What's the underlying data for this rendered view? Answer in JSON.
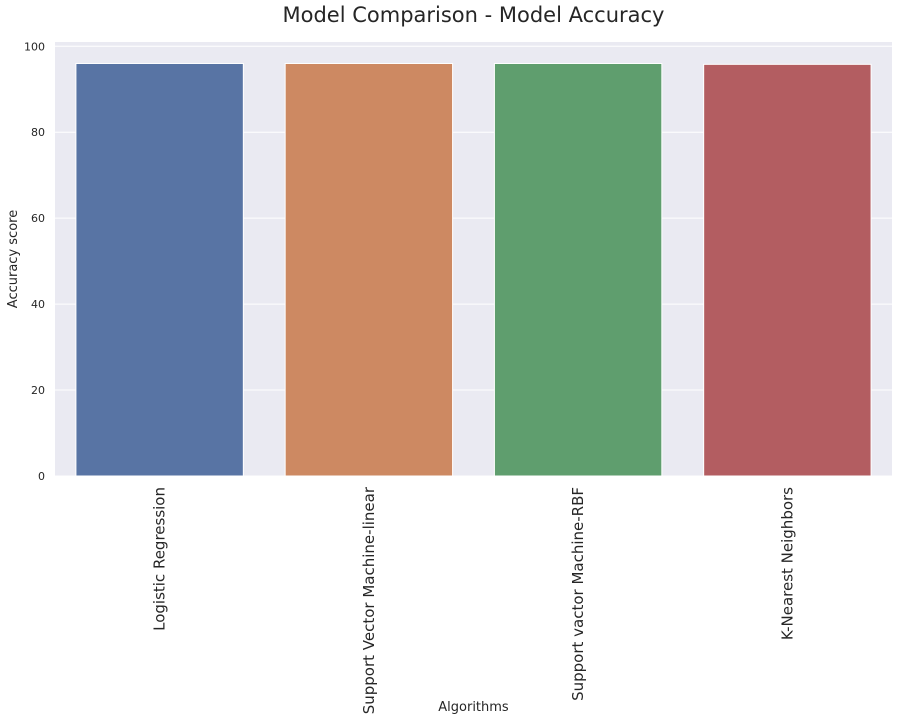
{
  "chart_data": {
    "type": "bar",
    "title": "Model Comparison - Model Accuracy",
    "xlabel": "Algorithms",
    "ylabel": "Accuracy score",
    "categories": [
      "Logistic Regression",
      "Support Vector Machine-linear",
      "Support vactor Machine-RBF",
      "K-Nearest Neighbors"
    ],
    "values": [
      96.0,
      96.0,
      96.0,
      95.8
    ],
    "colors": [
      "#5874a4",
      "#cd8962",
      "#5f9e6e",
      "#b35d61"
    ],
    "ylim": [
      0,
      101
    ],
    "yticks": [
      0,
      20,
      40,
      60,
      80,
      100
    ],
    "grid": "horizontal",
    "background": "#eaeaf2",
    "grid_color": "#ffffff"
  }
}
